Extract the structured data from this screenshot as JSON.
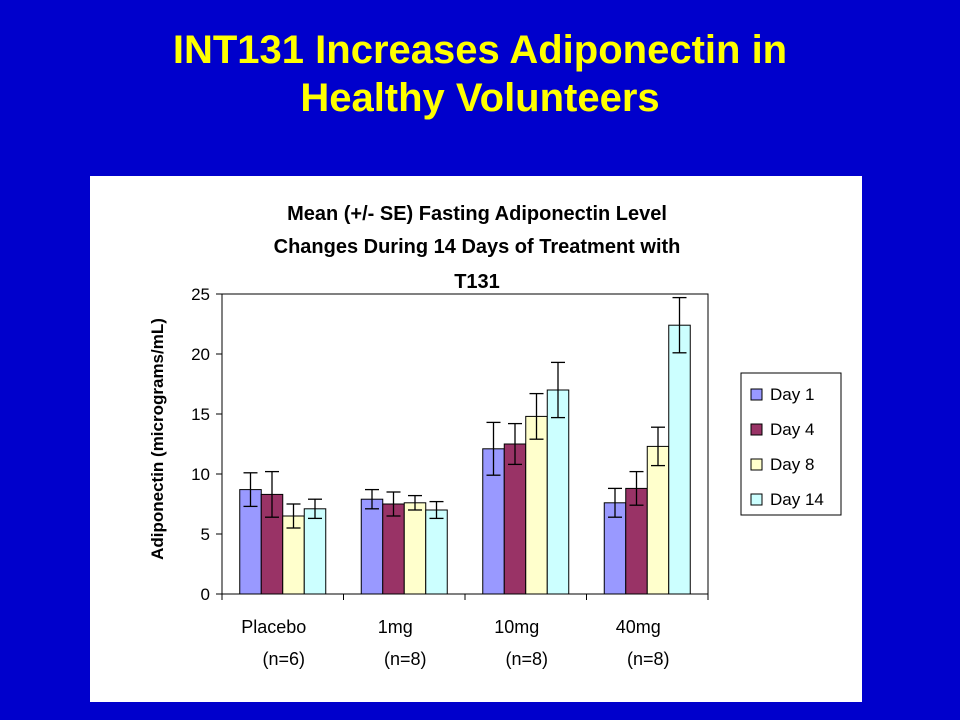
{
  "slide": {
    "title_line1": "INT131 Increases Adiponectin in",
    "title_line2": "Healthy Volunteers"
  },
  "chart_data": {
    "type": "bar",
    "title_lines": [
      "Mean (+/- SE) Fasting Adiponectin Level",
      "Changes During 14 Days of Treatment with",
      "T131"
    ],
    "ylabel": "Adiponectin (micrograms/mL)",
    "xlabel": "",
    "ylim": [
      0,
      25
    ],
    "yticks": [
      0,
      5,
      10,
      15,
      20,
      25
    ],
    "categories": [
      {
        "label": "Placebo",
        "sublabel": "(n=6)"
      },
      {
        "label": "1mg",
        "sublabel": "(n=8)"
      },
      {
        "label": "10mg",
        "sublabel": "(n=8)"
      },
      {
        "label": "40mg",
        "sublabel": "(n=8)"
      }
    ],
    "series": [
      {
        "name": "Day 1",
        "color": "#9999ff",
        "values": [
          8.7,
          7.9,
          12.1,
          7.6
        ],
        "errors": [
          1.4,
          0.8,
          2.2,
          1.2
        ]
      },
      {
        "name": "Day 4",
        "color": "#993366",
        "values": [
          8.3,
          7.5,
          12.5,
          8.8
        ],
        "errors": [
          1.9,
          1.0,
          1.7,
          1.4
        ]
      },
      {
        "name": "Day 8",
        "color": "#ffffcc",
        "values": [
          6.5,
          7.6,
          14.8,
          12.3
        ],
        "errors": [
          1.0,
          0.6,
          1.9,
          1.6
        ]
      },
      {
        "name": "Day 14",
        "color": "#ccffff",
        "values": [
          7.1,
          7.0,
          17.0,
          22.4
        ],
        "errors": [
          0.8,
          0.7,
          2.3,
          2.3
        ]
      }
    ],
    "grid": false,
    "legend_position": "right"
  }
}
